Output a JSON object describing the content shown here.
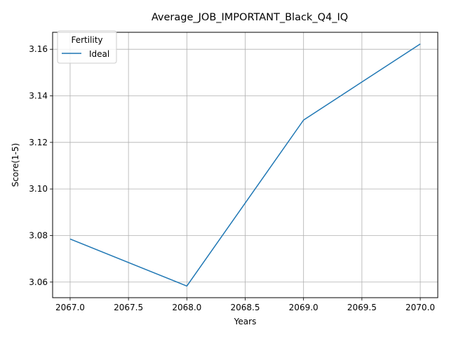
{
  "chart_data": {
    "type": "line",
    "title": "Average_JOB_IMPORTANT_Black_Q4_IQ",
    "xlabel": "Years",
    "ylabel": "Score(1-5)",
    "x": [
      2067,
      2068,
      2069,
      2070
    ],
    "series": [
      {
        "name": "Ideal",
        "color": "#1f77b4",
        "values": [
          3.0785,
          3.0583,
          3.1296,
          3.1623
        ]
      }
    ],
    "xlim": [
      2066.85,
      2070.15
    ],
    "ylim": [
      3.0533,
      3.1673
    ],
    "xticks": [
      2067.0,
      2067.5,
      2068.0,
      2068.5,
      2069.0,
      2069.5,
      2070.0
    ],
    "xtick_labels": [
      "2067.0",
      "2067.5",
      "2068.0",
      "2068.5",
      "2069.0",
      "2069.5",
      "2070.0"
    ],
    "yticks": [
      3.06,
      3.08,
      3.1,
      3.12,
      3.14,
      3.16
    ],
    "ytick_labels": [
      "3.06",
      "3.08",
      "3.10",
      "3.12",
      "3.14",
      "3.16"
    ],
    "grid": true,
    "legend": {
      "title": "Fertility",
      "placement": "top-left"
    }
  }
}
